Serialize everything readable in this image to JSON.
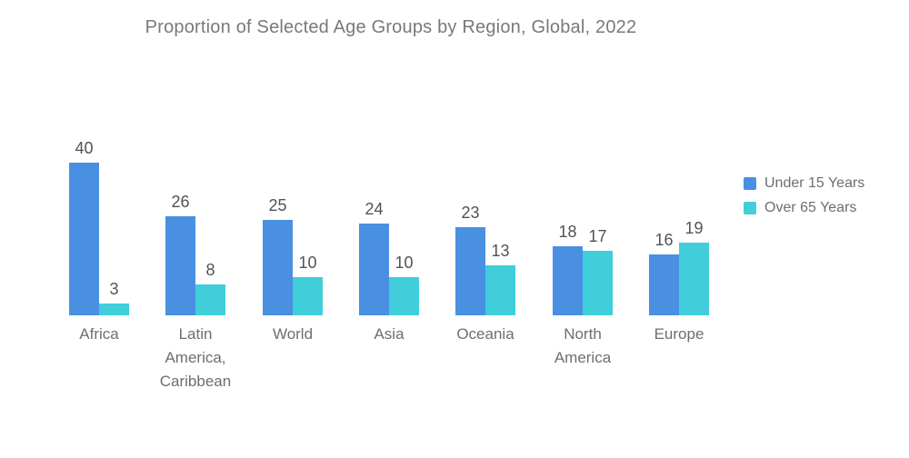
{
  "title": "Proportion of Selected Age Groups by Region, Global, 2022",
  "colors": {
    "under_15": "#4A90E2",
    "over_65": "#3FCEDA",
    "title_text": "#77797C",
    "value_text": "#505356",
    "axis_text": "#6B6F72",
    "background": "#FFFFFF"
  },
  "legend": {
    "position": "right",
    "items": [
      {
        "label": "Under 15 Years",
        "color": "#4A90E2"
      },
      {
        "label": "Over 65 Years",
        "color": "#3FCEDA"
      }
    ]
  },
  "chart_data": {
    "type": "bar",
    "title": "Proportion of Selected Age Groups by Region, Global, 2022",
    "categories": [
      "Africa",
      "Latin America, Caribbean",
      "World",
      "Asia",
      "Oceania",
      "North America",
      "Europe"
    ],
    "category_label_lines": [
      [
        "Africa"
      ],
      [
        "Latin",
        "America,",
        "Caribbean"
      ],
      [
        "World"
      ],
      [
        "Asia"
      ],
      [
        "Oceania"
      ],
      [
        "North",
        "America"
      ],
      [
        "Europe"
      ]
    ],
    "series": [
      {
        "name": "Under 15 Years",
        "color": "#4A90E2",
        "values": [
          40,
          26,
          25,
          24,
          23,
          18,
          16
        ]
      },
      {
        "name": "Over 65 Years",
        "color": "#3FCEDA",
        "values": [
          3,
          8,
          10,
          10,
          13,
          17,
          19
        ]
      }
    ],
    "data_labels": true,
    "grid": false,
    "axis_lines": false,
    "xlabel": "",
    "ylabel": "",
    "ylim": [
      0,
      42
    ],
    "legend_position": "right"
  }
}
